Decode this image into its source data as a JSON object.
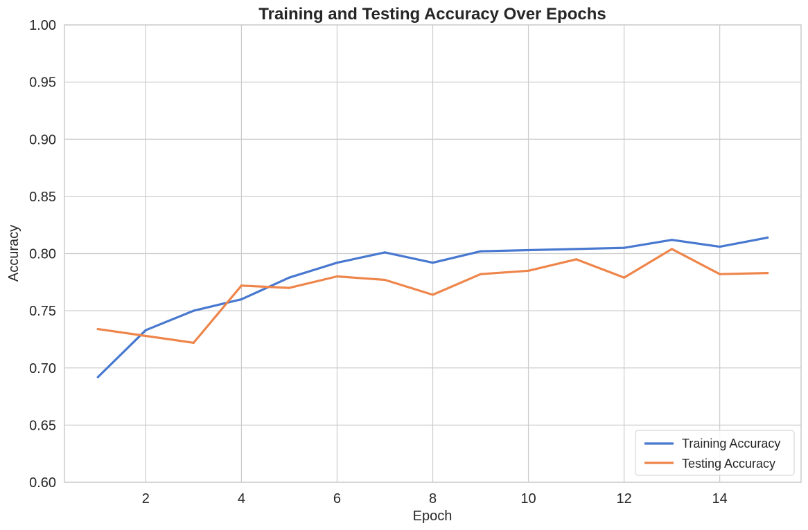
{
  "chart_data": {
    "type": "line",
    "title": "Training and Testing Accuracy Over Epochs",
    "xlabel": "Epoch",
    "ylabel": "Accuracy",
    "x": [
      1,
      2,
      3,
      4,
      5,
      6,
      7,
      8,
      9,
      10,
      11,
      12,
      13,
      14,
      15
    ],
    "xlim": [
      0.3,
      15.7
    ],
    "ylim": [
      0.6,
      1.0
    ],
    "xticks": [
      2,
      4,
      6,
      8,
      10,
      12,
      14
    ],
    "yticks": [
      "0.60",
      "0.65",
      "0.70",
      "0.75",
      "0.80",
      "0.85",
      "0.90",
      "0.95",
      "1.00"
    ],
    "grid": true,
    "legend_position": "bottom-right",
    "series": [
      {
        "name": "Training Accuracy",
        "color": "#4878cf",
        "values": [
          0.692,
          0.733,
          0.75,
          0.76,
          0.779,
          0.792,
          0.801,
          0.792,
          0.802,
          0.803,
          0.804,
          0.805,
          0.812,
          0.806,
          0.814
        ]
      },
      {
        "name": "Testing Accuracy",
        "color": "#ee854a",
        "values": [
          0.734,
          0.728,
          0.722,
          0.772,
          0.77,
          0.78,
          0.777,
          0.764,
          0.782,
          0.785,
          0.795,
          0.779,
          0.804,
          0.782,
          0.783
        ]
      }
    ]
  }
}
